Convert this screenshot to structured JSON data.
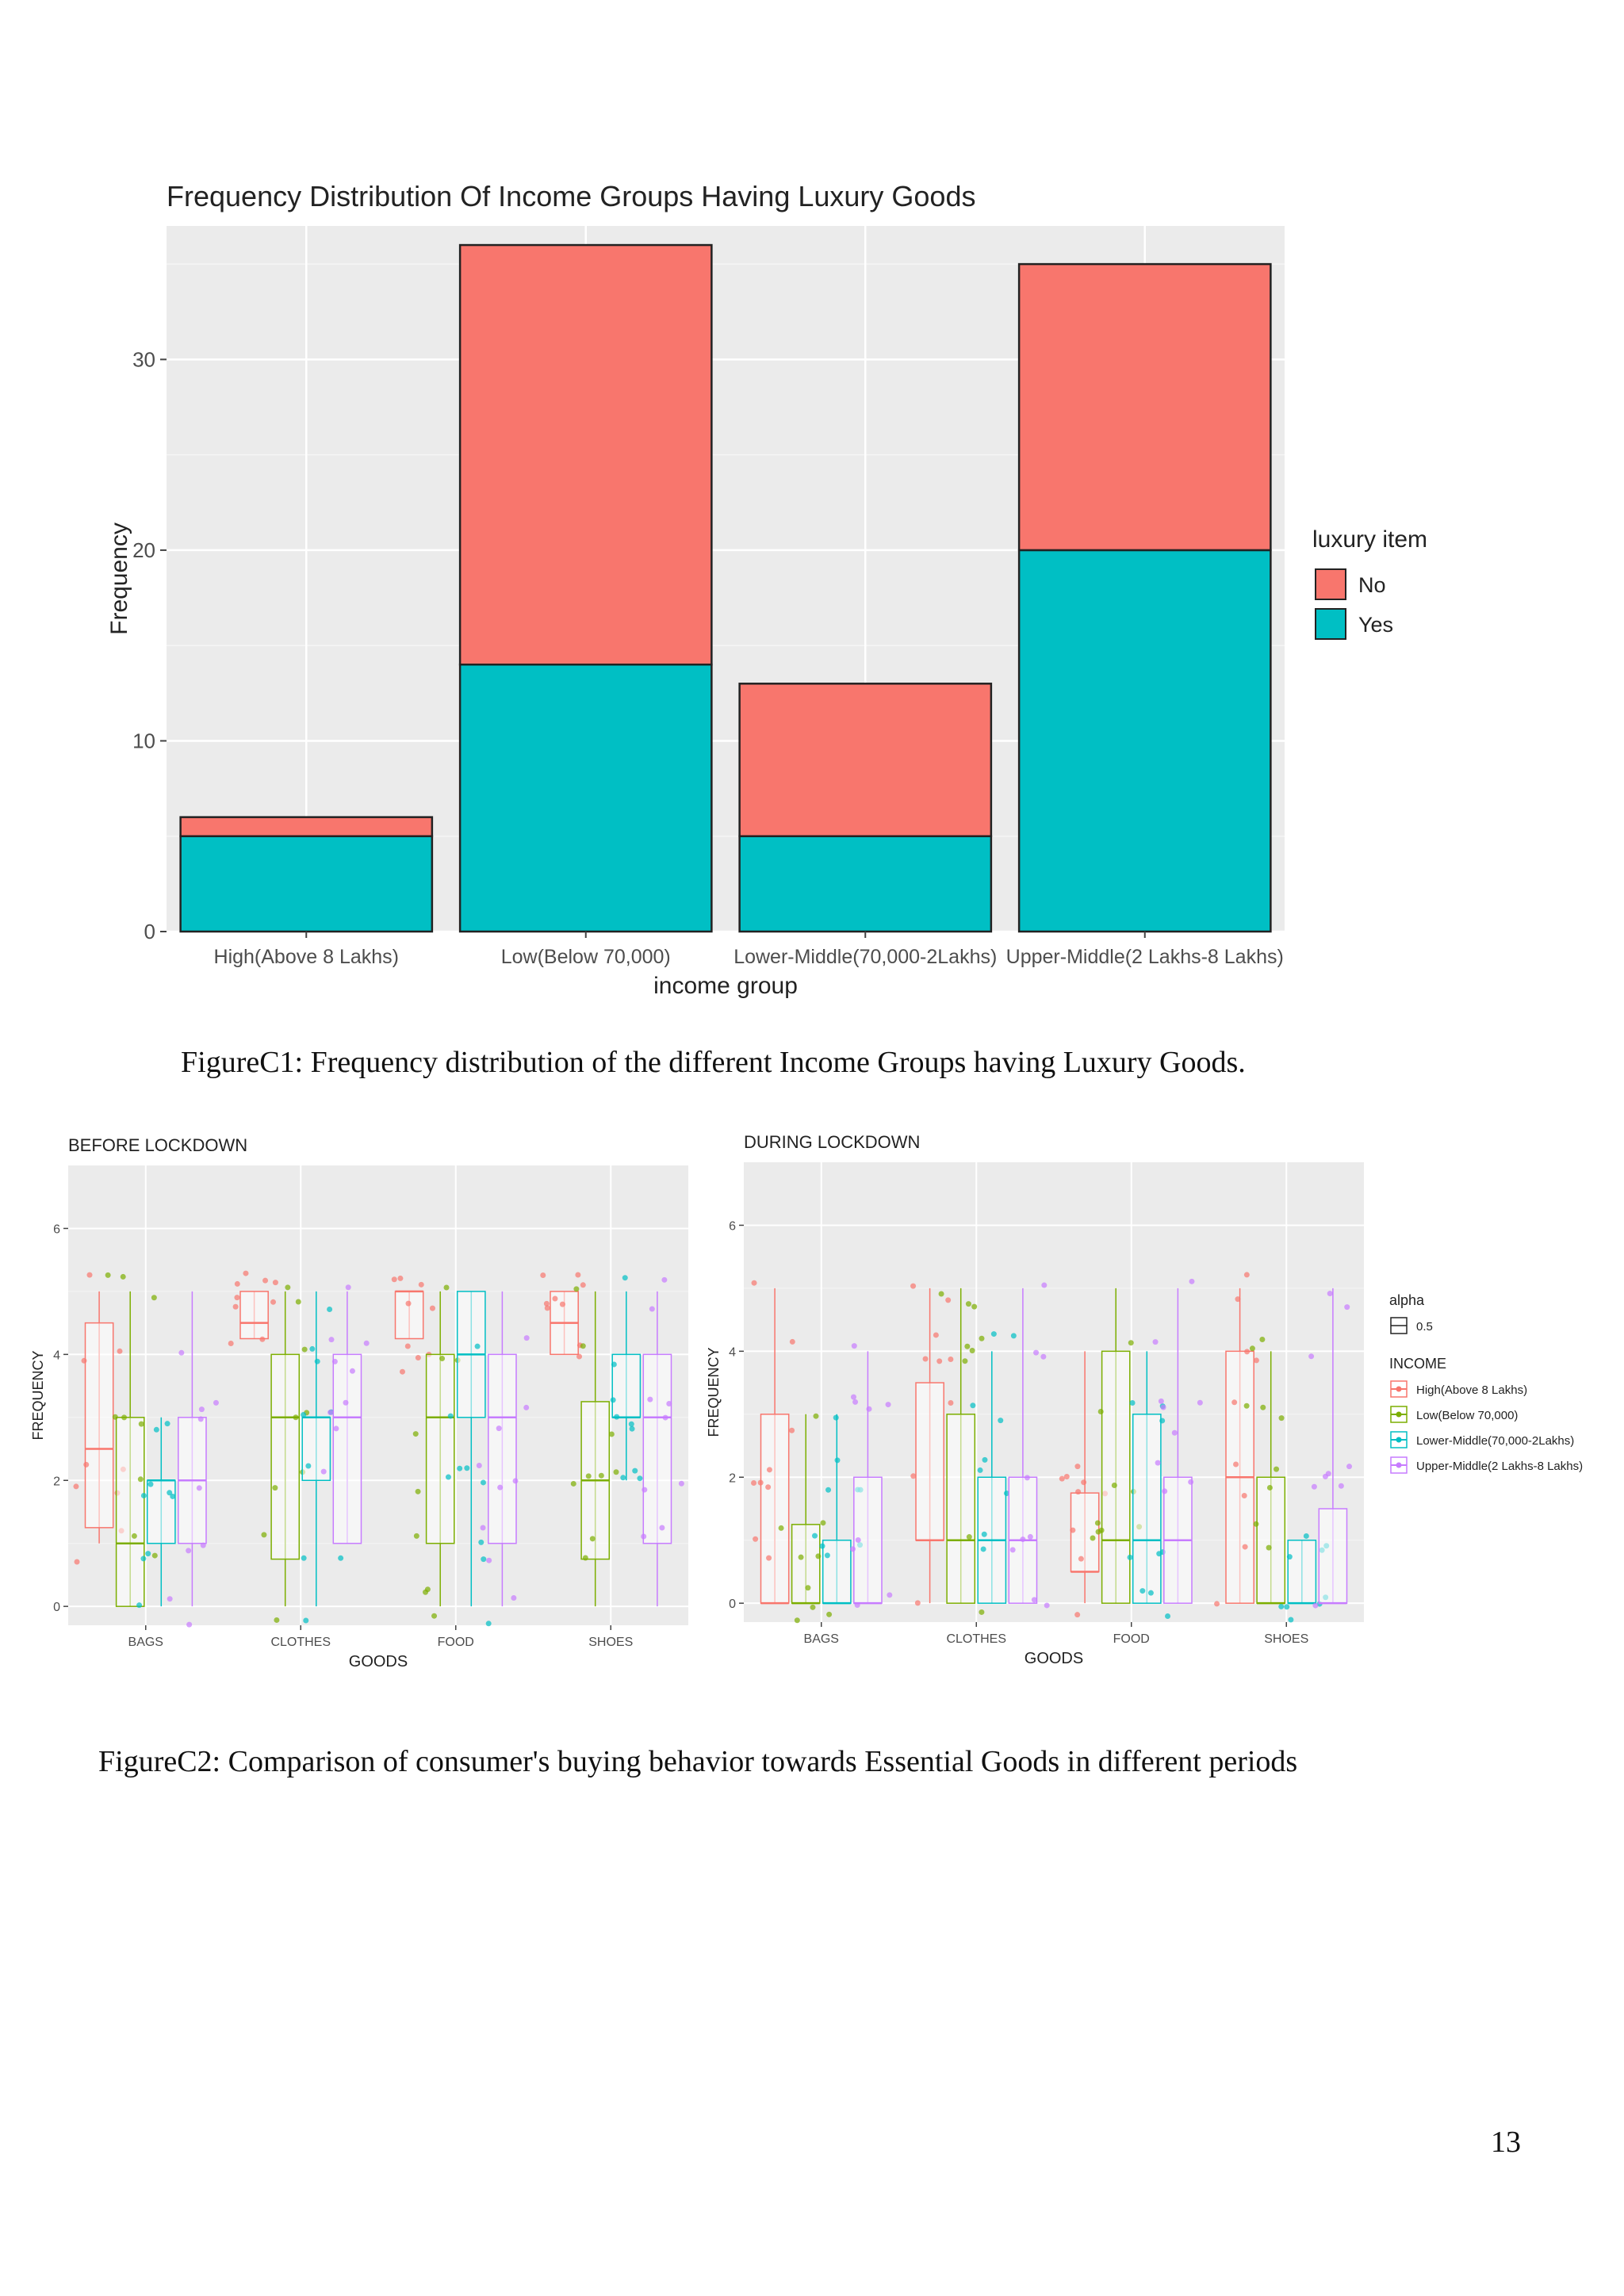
{
  "figure_c1": {
    "caption": "FigureC1: Frequency distribution of the different Income Groups having Luxury Goods."
  },
  "figure_c2": {
    "caption": "FigureC2: Comparison of consumer's buying behavior towards Essential Goods in different periods"
  },
  "page_number": "13",
  "colors": {
    "no": "#F8766D",
    "yes": "#00BFC4",
    "high": "#F8766D",
    "low": "#7CAE00",
    "lower_middle": "#00BFC4",
    "upper_middle": "#C77CFF",
    "panel_bg": "#EBEBEB",
    "grid": "#FFFFFF"
  },
  "chart_data": [
    {
      "type": "bar",
      "stacked": true,
      "title": "Frequency Distribution Of Income Groups Having Luxury Goods",
      "xlabel": "income group",
      "ylabel": "Frequency",
      "categories": [
        "High(Above 8 Lakhs)",
        "Low(Below 70,000)",
        "Lower-Middle(70,000-2Lakhs)",
        "Upper-Middle(2 Lakhs-8 Lakhs)"
      ],
      "series": [
        {
          "name": "Yes",
          "values": [
            5,
            14,
            5,
            20
          ]
        },
        {
          "name": "No",
          "values": [
            1,
            22,
            8,
            15
          ]
        }
      ],
      "ylim": [
        0,
        37
      ],
      "yticks": [
        0,
        10,
        20,
        30
      ],
      "legend_title": "luxury item",
      "legend_entries": [
        "No",
        "Yes"
      ],
      "legend_position": "right",
      "grid": true
    },
    {
      "type": "box",
      "title": "BEFORE LOCKDOWN",
      "xlabel": "GOODS",
      "ylabel": "FREQUENCY",
      "categories": [
        "BAGS",
        "CLOTHES",
        "FOOD",
        "SHOES"
      ],
      "ylim": [
        -0.3,
        7
      ],
      "yticks": [
        0,
        2,
        4,
        6
      ],
      "groups": [
        "High(Above 8 Lakhs)",
        "Low(Below 70,000)",
        "Lower-Middle(70,000-2Lakhs)",
        "Upper-Middle(2 Lakhs-8 Lakhs)"
      ],
      "boxes": [
        [
          [
            1,
            1.25,
            2.5,
            4.5,
            5
          ],
          [
            0,
            0,
            1,
            3,
            5
          ],
          [
            0,
            1,
            2,
            2,
            3
          ],
          [
            0,
            1,
            2,
            3,
            5
          ]
        ],
        [
          [
            4.25,
            4.25,
            4.5,
            5,
            5
          ],
          [
            0,
            0.75,
            3,
            4,
            5
          ],
          [
            0,
            2,
            3,
            3,
            5
          ],
          [
            1,
            1,
            3,
            4,
            5
          ]
        ],
        [
          [
            4.25,
            4.25,
            5,
            5,
            5
          ],
          [
            0,
            1,
            3,
            4,
            5
          ],
          [
            0,
            3,
            4,
            5,
            5
          ],
          [
            0,
            1,
            3,
            4,
            5
          ]
        ],
        [
          [
            4,
            4,
            4.5,
            5,
            5
          ],
          [
            0,
            0.75,
            2,
            3.25,
            5
          ],
          [
            2,
            3,
            3,
            4,
            5
          ],
          [
            0,
            1,
            3,
            4,
            5
          ]
        ]
      ],
      "grid": true
    },
    {
      "type": "box",
      "title": "DURING LOCKDOWN",
      "xlabel": "GOODS",
      "ylabel": "FREQUENCY",
      "categories": [
        "BAGS",
        "CLOTHES",
        "FOOD",
        "SHOES"
      ],
      "ylim": [
        -0.3,
        7
      ],
      "yticks": [
        0,
        2,
        4,
        6
      ],
      "groups": [
        "High(Above 8 Lakhs)",
        "Low(Below 70,000)",
        "Lower-Middle(70,000-2Lakhs)",
        "Upper-Middle(2 Lakhs-8 Lakhs)"
      ],
      "boxes": [
        [
          [
            0,
            0,
            0,
            3,
            5
          ],
          [
            0,
            0,
            0,
            1.25,
            3
          ],
          [
            0,
            0,
            0,
            1,
            3
          ],
          [
            0,
            0,
            0,
            2,
            4
          ]
        ],
        [
          [
            0,
            1,
            1,
            3.5,
            5
          ],
          [
            0,
            0,
            1,
            3,
            5
          ],
          [
            0,
            0,
            1,
            2,
            4
          ],
          [
            0,
            0,
            1,
            2,
            5
          ]
        ],
        [
          [
            0,
            0.5,
            0.5,
            1.75,
            4
          ],
          [
            0,
            0,
            1,
            4,
            5
          ],
          [
            0,
            0,
            1,
            3,
            4
          ],
          [
            0,
            0,
            1,
            2,
            5
          ]
        ],
        [
          [
            0,
            0,
            2,
            4,
            5
          ],
          [
            0,
            0,
            0,
            2,
            4
          ],
          [
            0,
            0,
            0,
            1,
            1
          ],
          [
            0,
            0,
            0,
            1.5,
            5
          ]
        ]
      ],
      "legend": {
        "alpha_title": "alpha",
        "alpha_value": "0.5",
        "title": "INCOME",
        "entries": [
          "High(Above 8 Lakhs)",
          "Low(Below 70,000)",
          "Lower-Middle(70,000-2Lakhs)",
          "Upper-Middle(2 Lakhs-8 Lakhs)"
        ],
        "position": "right"
      },
      "grid": true
    }
  ]
}
